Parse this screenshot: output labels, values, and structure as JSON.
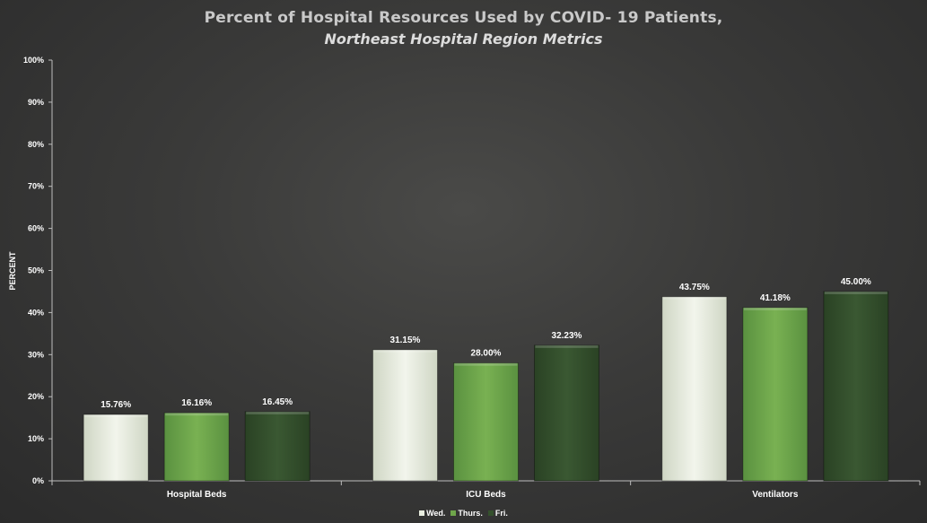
{
  "chart_data": {
    "type": "bar",
    "title": "Percent of Hospital Resources Used by COVID- 19 Patients,",
    "subtitle": "Northeast Hospital Region Metrics",
    "ylabel": "PERCENT",
    "xlabel": "",
    "ylim": [
      0,
      100
    ],
    "yticks": [
      0,
      10,
      20,
      30,
      40,
      50,
      60,
      70,
      80,
      90,
      100
    ],
    "ytick_labels": [
      "0%",
      "10%",
      "20%",
      "30%",
      "40%",
      "50%",
      "60%",
      "70%",
      "80%",
      "90%",
      "100%"
    ],
    "categories": [
      "Hospital Beds",
      "ICU Beds",
      "Ventilators"
    ],
    "series": [
      {
        "name": "Wed.",
        "color": "#e8eddf",
        "values": [
          15.76,
          31.15,
          43.75
        ],
        "labels": [
          "15.76%",
          "31.15%",
          "43.75%"
        ]
      },
      {
        "name": "Thurs.",
        "color": "#6fa64b",
        "values": [
          16.16,
          28.0,
          41.18
        ],
        "labels": [
          "16.16%",
          "28.00%",
          "41.18%"
        ]
      },
      {
        "name": "Fri.",
        "color": "#34502c",
        "values": [
          16.45,
          32.23,
          45.0
        ],
        "labels": [
          "16.45%",
          "32.23%",
          "45.00%"
        ]
      }
    ],
    "grid": false,
    "legend_position": "bottom"
  }
}
